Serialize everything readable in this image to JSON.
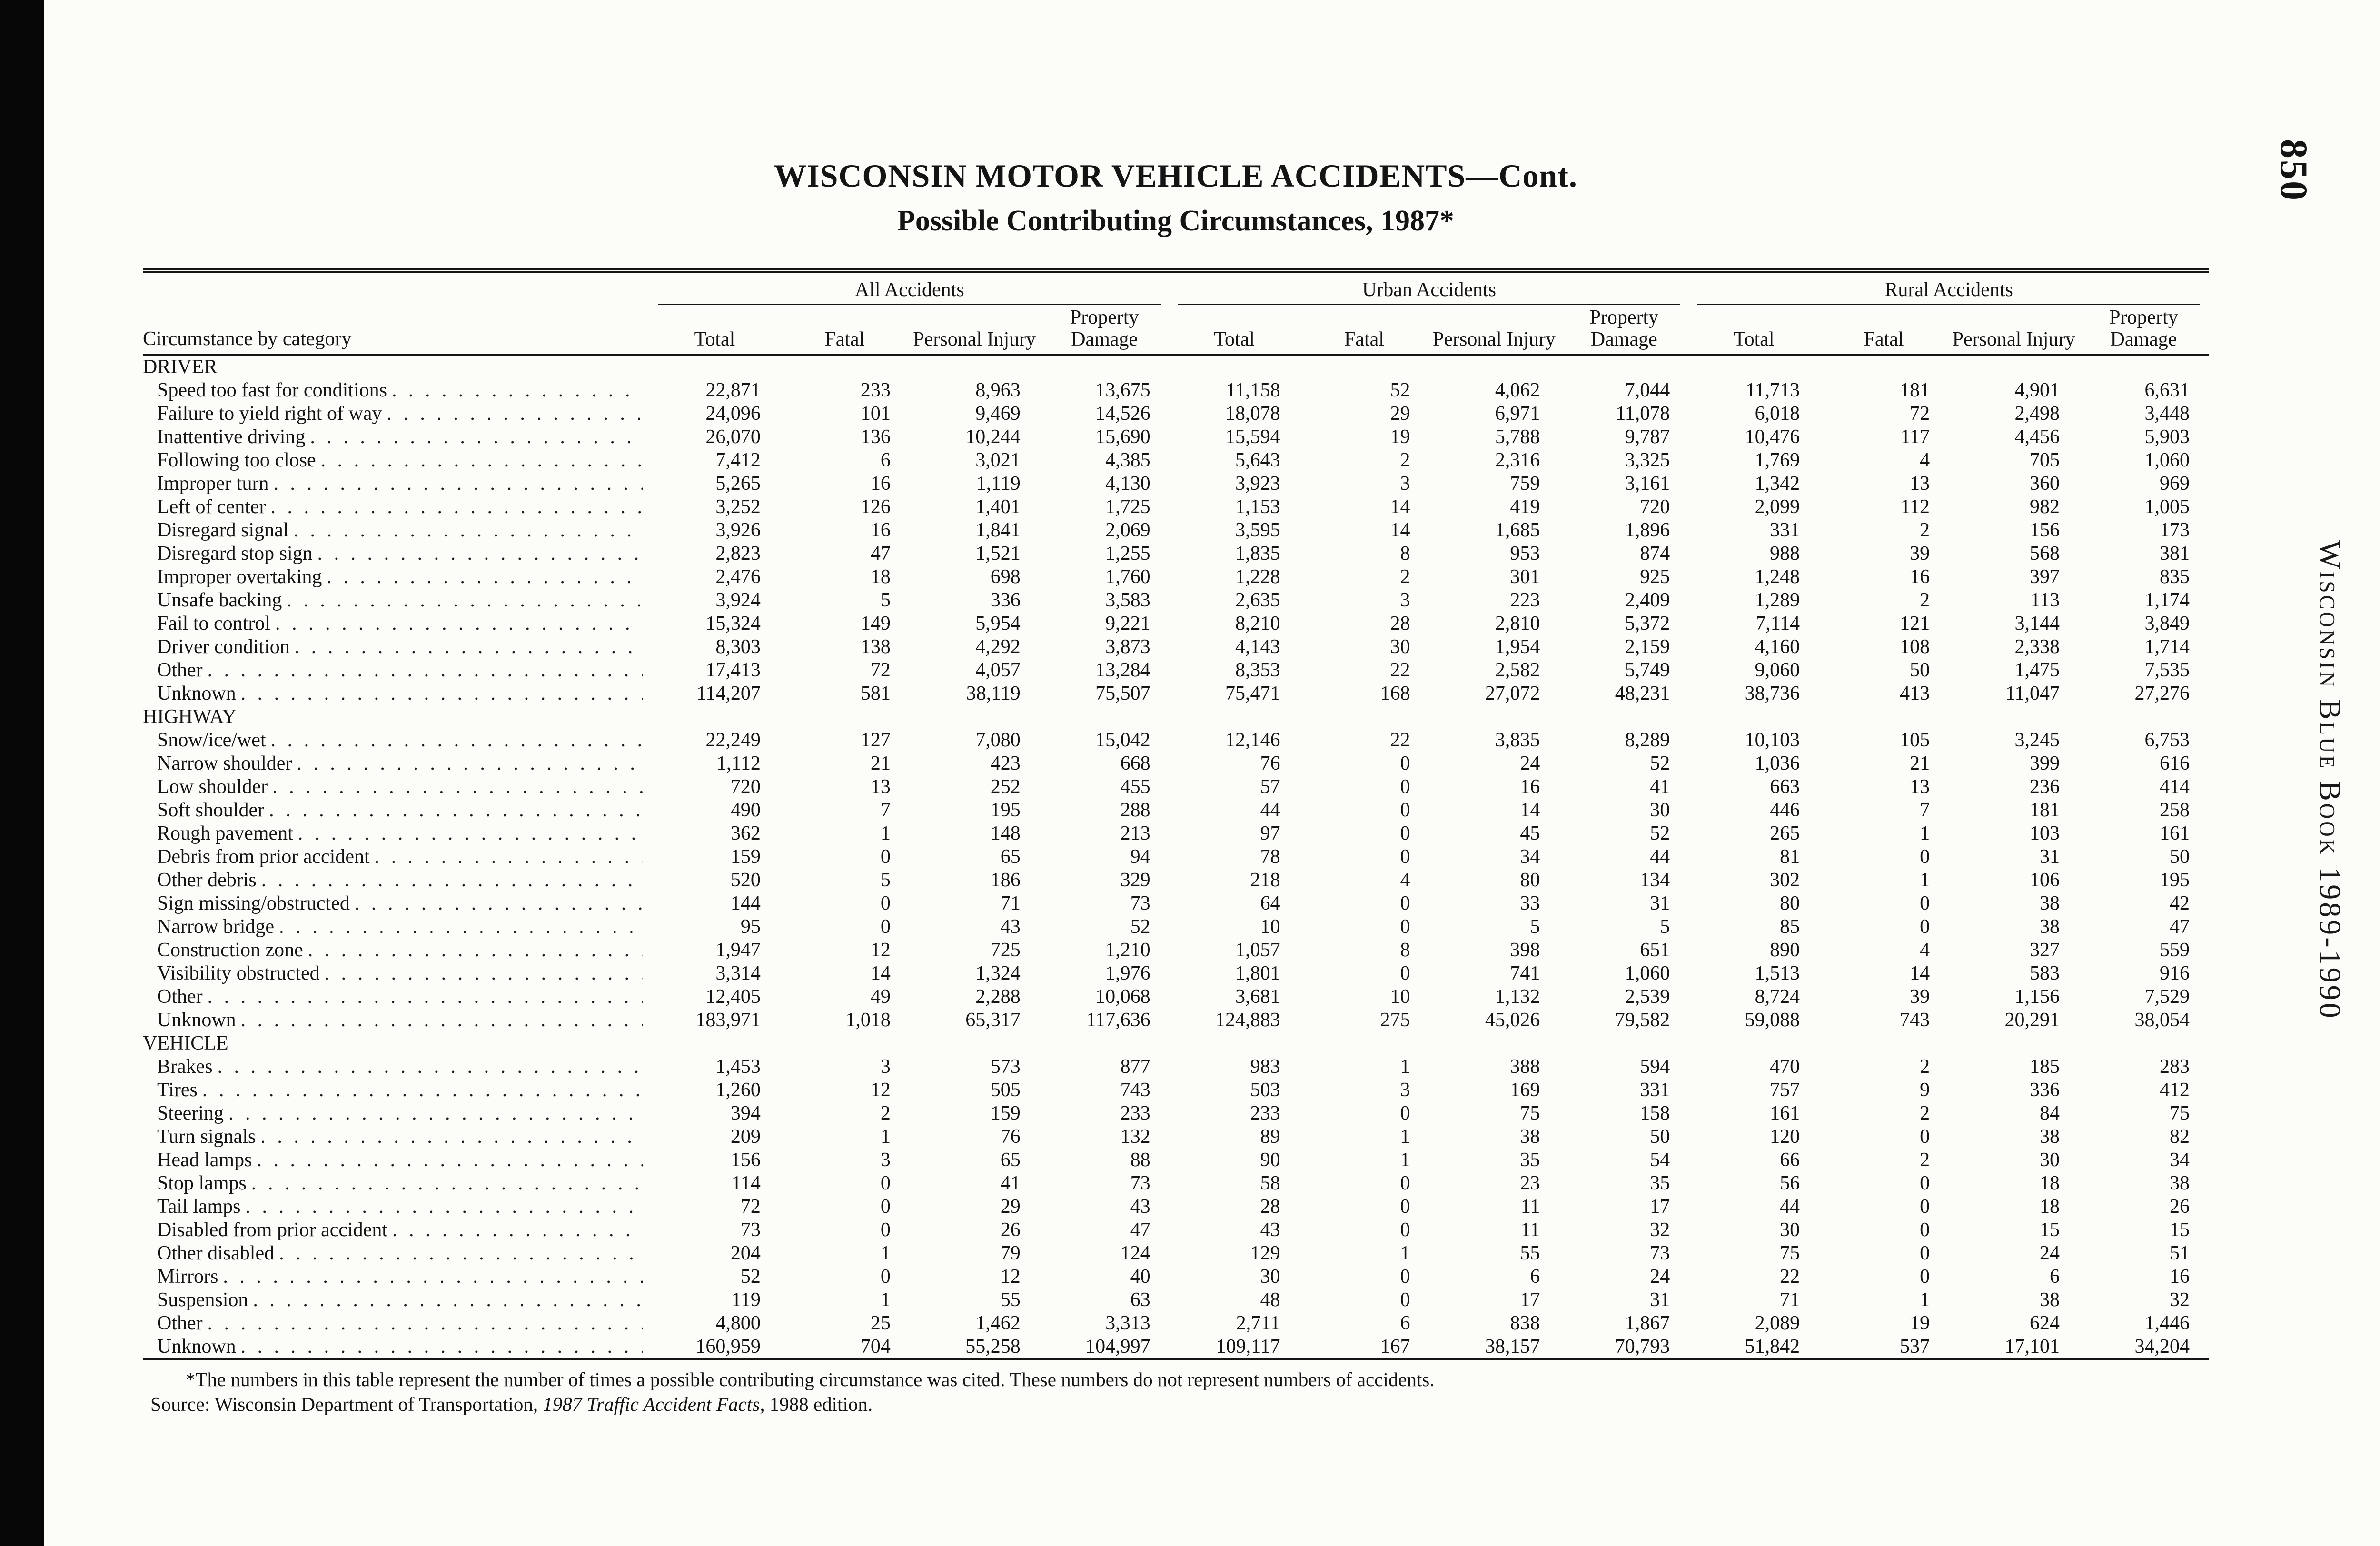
{
  "page": {
    "number": "850",
    "side_text": "Wisconsin Blue Book 1989-1990"
  },
  "title": "WISCONSIN MOTOR VEHICLE ACCIDENTS—Cont.",
  "subtitle": "Possible Contributing Circumstances, 1987*",
  "table": {
    "row_header": "Circumstance by category",
    "col_groups": [
      "All Accidents",
      "Urban Accidents",
      "Rural Accidents"
    ],
    "sub_headers": [
      "Total",
      "Fatal",
      "Personal Injury",
      "Property Damage"
    ],
    "sections": [
      {
        "name": "DRIVER",
        "rows": [
          {
            "label": "Speed too fast for conditions",
            "values": [
              "22,871",
              "233",
              "8,963",
              "13,675",
              "11,158",
              "52",
              "4,062",
              "7,044",
              "11,713",
              "181",
              "4,901",
              "6,631"
            ]
          },
          {
            "label": "Failure to yield right of way",
            "values": [
              "24,096",
              "101",
              "9,469",
              "14,526",
              "18,078",
              "29",
              "6,971",
              "11,078",
              "6,018",
              "72",
              "2,498",
              "3,448"
            ]
          },
          {
            "label": "Inattentive driving",
            "values": [
              "26,070",
              "136",
              "10,244",
              "15,690",
              "15,594",
              "19",
              "5,788",
              "9,787",
              "10,476",
              "117",
              "4,456",
              "5,903"
            ]
          },
          {
            "label": "Following too close",
            "values": [
              "7,412",
              "6",
              "3,021",
              "4,385",
              "5,643",
              "2",
              "2,316",
              "3,325",
              "1,769",
              "4",
              "705",
              "1,060"
            ]
          },
          {
            "label": "Improper turn",
            "values": [
              "5,265",
              "16",
              "1,119",
              "4,130",
              "3,923",
              "3",
              "759",
              "3,161",
              "1,342",
              "13",
              "360",
              "969"
            ]
          },
          {
            "label": "Left of center",
            "values": [
              "3,252",
              "126",
              "1,401",
              "1,725",
              "1,153",
              "14",
              "419",
              "720",
              "2,099",
              "112",
              "982",
              "1,005"
            ]
          },
          {
            "label": "Disregard signal",
            "values": [
              "3,926",
              "16",
              "1,841",
              "2,069",
              "3,595",
              "14",
              "1,685",
              "1,896",
              "331",
              "2",
              "156",
              "173"
            ]
          },
          {
            "label": "Disregard stop sign",
            "values": [
              "2,823",
              "47",
              "1,521",
              "1,255",
              "1,835",
              "8",
              "953",
              "874",
              "988",
              "39",
              "568",
              "381"
            ]
          },
          {
            "label": "Improper overtaking",
            "values": [
              "2,476",
              "18",
              "698",
              "1,760",
              "1,228",
              "2",
              "301",
              "925",
              "1,248",
              "16",
              "397",
              "835"
            ]
          },
          {
            "label": "Unsafe backing",
            "values": [
              "3,924",
              "5",
              "336",
              "3,583",
              "2,635",
              "3",
              "223",
              "2,409",
              "1,289",
              "2",
              "113",
              "1,174"
            ]
          },
          {
            "label": "Fail to control",
            "values": [
              "15,324",
              "149",
              "5,954",
              "9,221",
              "8,210",
              "28",
              "2,810",
              "5,372",
              "7,114",
              "121",
              "3,144",
              "3,849"
            ]
          },
          {
            "label": "Driver condition",
            "values": [
              "8,303",
              "138",
              "4,292",
              "3,873",
              "4,143",
              "30",
              "1,954",
              "2,159",
              "4,160",
              "108",
              "2,338",
              "1,714"
            ]
          },
          {
            "label": "Other",
            "values": [
              "17,413",
              "72",
              "4,057",
              "13,284",
              "8,353",
              "22",
              "2,582",
              "5,749",
              "9,060",
              "50",
              "1,475",
              "7,535"
            ]
          },
          {
            "label": "Unknown",
            "values": [
              "114,207",
              "581",
              "38,119",
              "75,507",
              "75,471",
              "168",
              "27,072",
              "48,231",
              "38,736",
              "413",
              "11,047",
              "27,276"
            ]
          }
        ]
      },
      {
        "name": "HIGHWAY",
        "rows": [
          {
            "label": "Snow/ice/wet",
            "values": [
              "22,249",
              "127",
              "7,080",
              "15,042",
              "12,146",
              "22",
              "3,835",
              "8,289",
              "10,103",
              "105",
              "3,245",
              "6,753"
            ]
          },
          {
            "label": "Narrow shoulder",
            "values": [
              "1,112",
              "21",
              "423",
              "668",
              "76",
              "0",
              "24",
              "52",
              "1,036",
              "21",
              "399",
              "616"
            ]
          },
          {
            "label": "Low shoulder",
            "values": [
              "720",
              "13",
              "252",
              "455",
              "57",
              "0",
              "16",
              "41",
              "663",
              "13",
              "236",
              "414"
            ]
          },
          {
            "label": "Soft shoulder",
            "values": [
              "490",
              "7",
              "195",
              "288",
              "44",
              "0",
              "14",
              "30",
              "446",
              "7",
              "181",
              "258"
            ]
          },
          {
            "label": "Rough pavement",
            "values": [
              "362",
              "1",
              "148",
              "213",
              "97",
              "0",
              "45",
              "52",
              "265",
              "1",
              "103",
              "161"
            ]
          },
          {
            "label": "Debris from prior accident",
            "values": [
              "159",
              "0",
              "65",
              "94",
              "78",
              "0",
              "34",
              "44",
              "81",
              "0",
              "31",
              "50"
            ]
          },
          {
            "label": "Other debris",
            "values": [
              "520",
              "5",
              "186",
              "329",
              "218",
              "4",
              "80",
              "134",
              "302",
              "1",
              "106",
              "195"
            ]
          },
          {
            "label": "Sign missing/obstructed",
            "values": [
              "144",
              "0",
              "71",
              "73",
              "64",
              "0",
              "33",
              "31",
              "80",
              "0",
              "38",
              "42"
            ]
          },
          {
            "label": "Narrow bridge",
            "values": [
              "95",
              "0",
              "43",
              "52",
              "10",
              "0",
              "5",
              "5",
              "85",
              "0",
              "38",
              "47"
            ]
          },
          {
            "label": "Construction zone",
            "values": [
              "1,947",
              "12",
              "725",
              "1,210",
              "1,057",
              "8",
              "398",
              "651",
              "890",
              "4",
              "327",
              "559"
            ]
          },
          {
            "label": "Visibility obstructed",
            "values": [
              "3,314",
              "14",
              "1,324",
              "1,976",
              "1,801",
              "0",
              "741",
              "1,060",
              "1,513",
              "14",
              "583",
              "916"
            ]
          },
          {
            "label": "Other",
            "values": [
              "12,405",
              "49",
              "2,288",
              "10,068",
              "3,681",
              "10",
              "1,132",
              "2,539",
              "8,724",
              "39",
              "1,156",
              "7,529"
            ]
          },
          {
            "label": "Unknown",
            "values": [
              "183,971",
              "1,018",
              "65,317",
              "117,636",
              "124,883",
              "275",
              "45,026",
              "79,582",
              "59,088",
              "743",
              "20,291",
              "38,054"
            ]
          }
        ]
      },
      {
        "name": "VEHICLE",
        "rows": [
          {
            "label": "Brakes",
            "values": [
              "1,453",
              "3",
              "573",
              "877",
              "983",
              "1",
              "388",
              "594",
              "470",
              "2",
              "185",
              "283"
            ]
          },
          {
            "label": "Tires",
            "values": [
              "1,260",
              "12",
              "505",
              "743",
              "503",
              "3",
              "169",
              "331",
              "757",
              "9",
              "336",
              "412"
            ]
          },
          {
            "label": "Steering",
            "values": [
              "394",
              "2",
              "159",
              "233",
              "233",
              "0",
              "75",
              "158",
              "161",
              "2",
              "84",
              "75"
            ]
          },
          {
            "label": "Turn signals",
            "values": [
              "209",
              "1",
              "76",
              "132",
              "89",
              "1",
              "38",
              "50",
              "120",
              "0",
              "38",
              "82"
            ]
          },
          {
            "label": "Head lamps",
            "values": [
              "156",
              "3",
              "65",
              "88",
              "90",
              "1",
              "35",
              "54",
              "66",
              "2",
              "30",
              "34"
            ]
          },
          {
            "label": "Stop lamps",
            "values": [
              "114",
              "0",
              "41",
              "73",
              "58",
              "0",
              "23",
              "35",
              "56",
              "0",
              "18",
              "38"
            ]
          },
          {
            "label": "Tail lamps",
            "values": [
              "72",
              "0",
              "29",
              "43",
              "28",
              "0",
              "11",
              "17",
              "44",
              "0",
              "18",
              "26"
            ]
          },
          {
            "label": "Disabled from prior accident",
            "values": [
              "73",
              "0",
              "26",
              "47",
              "43",
              "0",
              "11",
              "32",
              "30",
              "0",
              "15",
              "15"
            ]
          },
          {
            "label": "Other disabled",
            "values": [
              "204",
              "1",
              "79",
              "124",
              "129",
              "1",
              "55",
              "73",
              "75",
              "0",
              "24",
              "51"
            ]
          },
          {
            "label": "Mirrors",
            "values": [
              "52",
              "0",
              "12",
              "40",
              "30",
              "0",
              "6",
              "24",
              "22",
              "0",
              "6",
              "16"
            ]
          },
          {
            "label": "Suspension",
            "values": [
              "119",
              "1",
              "55",
              "63",
              "48",
              "0",
              "17",
              "31",
              "71",
              "1",
              "38",
              "32"
            ]
          },
          {
            "label": "Other",
            "values": [
              "4,800",
              "25",
              "1,462",
              "3,313",
              "2,711",
              "6",
              "838",
              "1,867",
              "2,089",
              "19",
              "624",
              "1,446"
            ]
          },
          {
            "label": "Unknown",
            "values": [
              "160,959",
              "704",
              "55,258",
              "104,997",
              "109,117",
              "167",
              "38,157",
              "70,793",
              "51,842",
              "537",
              "17,101",
              "34,204"
            ]
          }
        ]
      }
    ]
  },
  "footnotes": {
    "note": "*The numbers in this table represent the number of times a possible contributing circumstance was cited. These numbers do not represent numbers of accidents.",
    "source_prefix": "Source: Wisconsin Department of Transportation, ",
    "source_italic": "1987 Traffic Accident Facts",
    "source_suffix": ", 1988 edition."
  }
}
